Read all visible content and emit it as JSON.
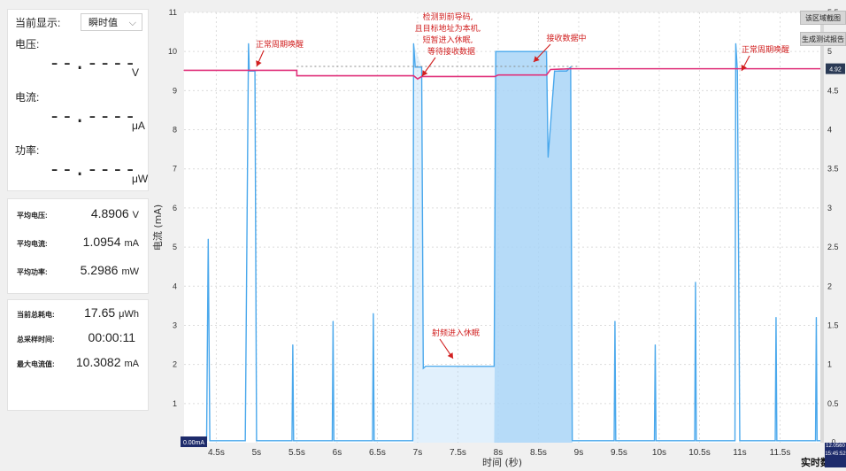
{
  "display": {
    "label": "当前显示:",
    "mode": "瞬时值"
  },
  "live": {
    "voltage": {
      "label": "电压:",
      "value": "--.----",
      "unit": "V"
    },
    "current": {
      "label": "电流:",
      "value": "--.----",
      "unit": "μA"
    },
    "power": {
      "label": "功率:",
      "value": "--.----",
      "unit": "μW"
    }
  },
  "averages": [
    {
      "label": "平均电压:",
      "value": "4.8906",
      "unit": "V"
    },
    {
      "label": "平均电流:",
      "value": "1.0954",
      "unit": "mA"
    },
    {
      "label": "平均功率:",
      "value": "5.2986",
      "unit": "mW"
    }
  ],
  "totals": [
    {
      "label": "当前总耗电:",
      "value": "17.65",
      "unit": "μWh"
    },
    {
      "label": "总采样时间:",
      "value": "00:00:11",
      "unit": ""
    },
    {
      "label": "最大电流值:",
      "value": "10.3082",
      "unit": "mA"
    }
  ],
  "buttons": {
    "region_zoom": "该区域截图",
    "generate_report": "生成测试报告"
  },
  "status": {
    "realtime": "实时数",
    "current_value": "12.0560",
    "clock": "15:45:52",
    "cursor_left": "0.00mA",
    "right_marker": "4.92"
  },
  "colors": {
    "current": "#4aa8ec",
    "current_fill": "#a9d5f7",
    "voltage": "#e0307a",
    "annotation": "#d11f1f",
    "axis_text": "#333333"
  },
  "chart_data": {
    "type": "line",
    "title": "",
    "xlabel": "时间 (秒)",
    "ylabel": "电流 (mA)",
    "xlim": [
      4.1,
      12.0
    ],
    "ylim": [
      0,
      11
    ],
    "y2lim": [
      0,
      5.5
    ],
    "x_ticks": [
      4.5,
      5,
      5.5,
      6,
      6.5,
      7,
      7.5,
      8,
      8.5,
      9,
      9.5,
      10,
      10.5,
      11,
      11.5
    ],
    "x_tick_labels": [
      "4.5s",
      "5s",
      "5.5s",
      "6s",
      "6.5s",
      "7s",
      "7.5s",
      "8s",
      "8.5s",
      "9s",
      "9.5s",
      "10s",
      "10.5s",
      "11s",
      "11.5s"
    ],
    "y_ticks": [
      1,
      2,
      3,
      4,
      5,
      6,
      7,
      8,
      9,
      10,
      11
    ],
    "y_tick_labels": [
      "1",
      "2",
      "3",
      "4",
      "5",
      "6",
      "7",
      "8",
      "9",
      "10",
      "11"
    ],
    "y2_ticks": [
      0,
      0.5,
      1,
      1.5,
      2,
      2.5,
      3,
      3.5,
      4,
      4.5,
      5,
      5.5
    ],
    "y2_tick_labels": [
      "0",
      "0.5",
      "1",
      "1.5",
      "2",
      "2.5",
      "3",
      "3.5",
      "4",
      "4.5",
      "5",
      "5.5"
    ],
    "grid": true,
    "series": [
      {
        "name": "",
        "role": "current",
        "x": [
          4.1,
          4.38,
          4.4,
          4.42,
          4.86,
          4.9,
          4.91,
          4.94,
          4.98,
          5.0,
          5.44,
          5.45,
          5.46,
          5.94,
          5.95,
          5.96,
          6.44,
          6.45,
          6.46,
          6.94,
          6.95,
          6.97,
          7.05,
          7.07,
          7.1,
          7.95,
          7.97,
          8.6,
          8.62,
          8.7,
          8.85,
          8.9,
          8.92,
          9.44,
          9.45,
          9.46,
          9.94,
          9.95,
          9.96,
          10.44,
          10.45,
          10.46,
          10.94,
          10.95,
          10.97,
          11.0,
          11.44,
          11.45,
          11.46,
          11.94,
          11.95,
          11.96,
          12.0
        ],
        "y": [
          0.05,
          0.05,
          5.2,
          0.05,
          0.05,
          10.2,
          9.5,
          9.5,
          9.5,
          0.05,
          0.05,
          2.5,
          0.05,
          0.05,
          3.1,
          0.05,
          0.05,
          3.3,
          0.05,
          0.05,
          10.2,
          9.6,
          9.6,
          1.9,
          1.95,
          1.95,
          10.0,
          10.0,
          7.3,
          9.5,
          9.5,
          9.6,
          0.05,
          0.05,
          3.1,
          0.05,
          0.05,
          2.5,
          0.05,
          0.05,
          4.1,
          0.05,
          0.05,
          10.2,
          9.5,
          0.05,
          0.05,
          3.2,
          0.05,
          0.05,
          3.2,
          0.05,
          0.05
        ]
      },
      {
        "name": "",
        "role": "voltage",
        "axis": "right",
        "x": [
          4.1,
          5.0,
          5.5,
          5.5,
          6.95,
          7.0,
          7.05,
          7.96,
          8.0,
          8.6,
          8.65,
          8.9,
          12.0
        ],
        "y": [
          4.76,
          4.76,
          4.76,
          4.69,
          4.69,
          4.65,
          4.68,
          4.68,
          4.7,
          4.7,
          4.77,
          4.78,
          4.78
        ]
      }
    ],
    "reference_line": {
      "y2": 4.81,
      "x": [
        5.5,
        9.0
      ]
    },
    "annotations": [
      {
        "text": "正常周期唤醒",
        "x": 5.0,
        "y": 9.55
      },
      {
        "text": "检测到前导码,",
        "x": 7.05,
        "y": 9.55
      },
      {
        "text": "且目标地址为本机,",
        "x": 7.05,
        "y": 9.55
      },
      {
        "text": "短暂进入休眠,",
        "x": 7.05,
        "y": 9.55
      },
      {
        "text": "等待接收数据",
        "x": 7.05,
        "y": 9.55
      },
      {
        "text": "接收数据中",
        "x": 8.35,
        "y": 9.9
      },
      {
        "text": "射频进入休眠",
        "x": 7.45,
        "y": 2.0
      },
      {
        "text": "正常周期唤醒",
        "x": 11.0,
        "y": 9.55
      }
    ]
  }
}
